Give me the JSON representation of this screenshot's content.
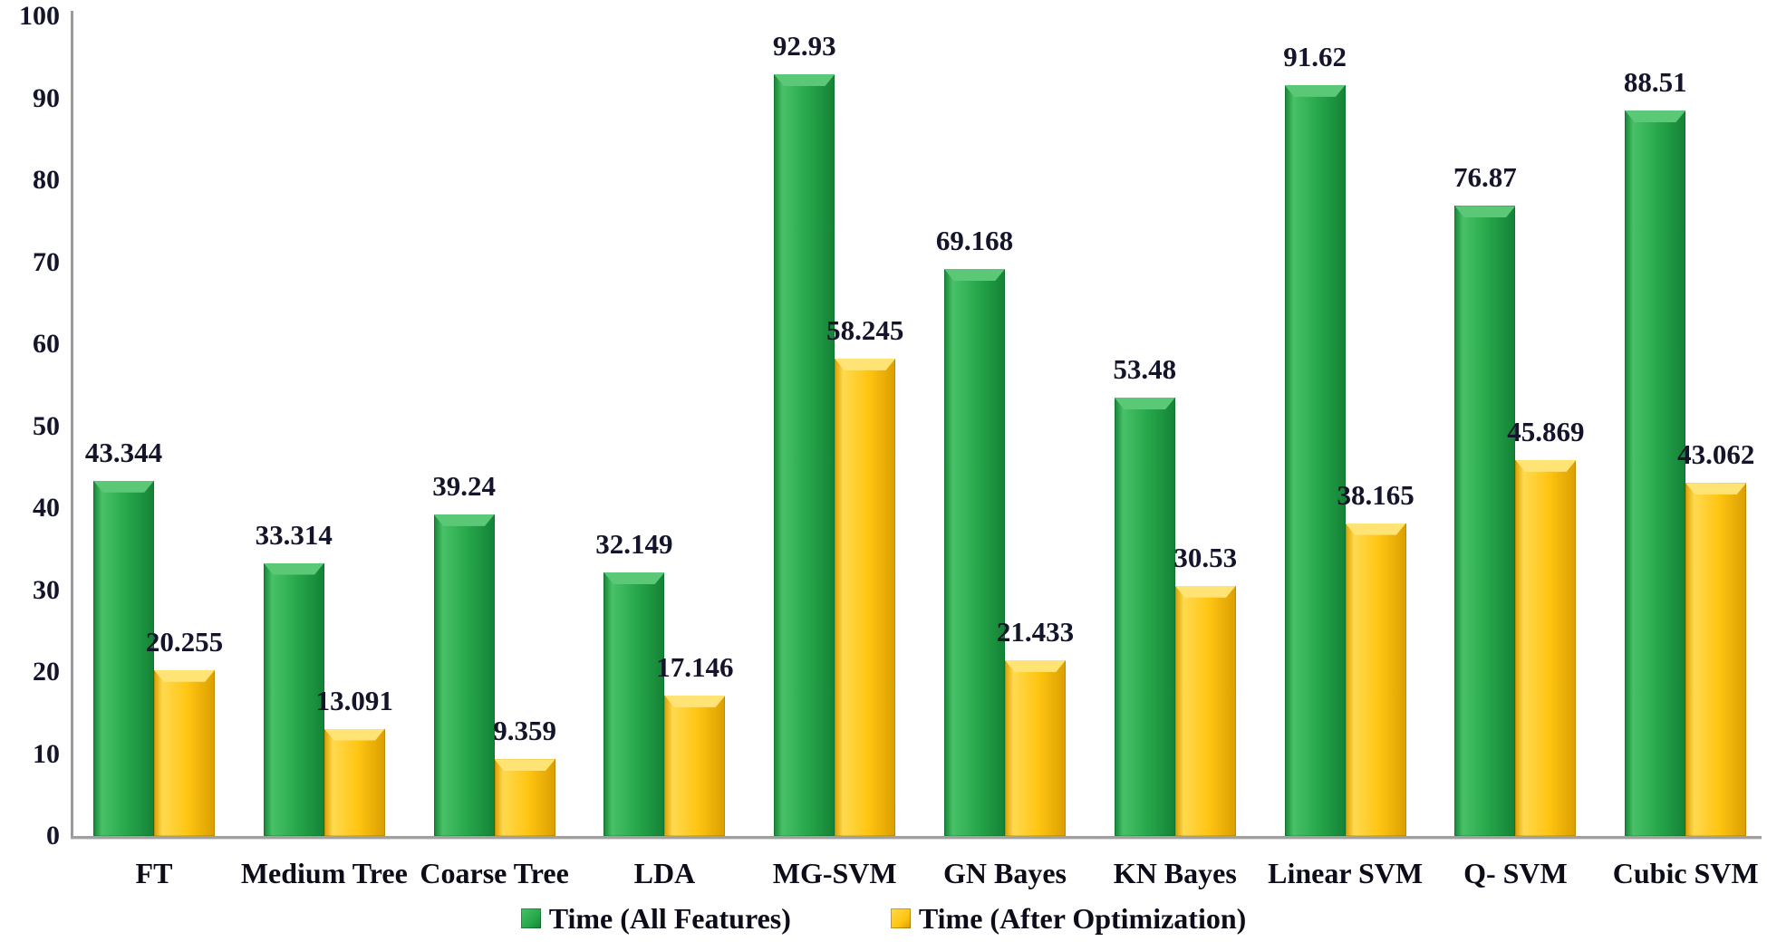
{
  "chart_data": {
    "type": "bar",
    "title": "",
    "xlabel": "",
    "ylabel": "",
    "categories": [
      "FT",
      "Medium Tree",
      "Coarse Tree",
      "LDA",
      "MG-SVM",
      "GN Bayes",
      "KN Bayes",
      "Linear SVM",
      "Q- SVM",
      "Cubic SVM"
    ],
    "series": [
      {
        "name": "Time (All Features)",
        "values": [
          43.344,
          33.314,
          39.24,
          32.149,
          92.93,
          69.168,
          53.48,
          91.62,
          76.87,
          88.51
        ],
        "value_labels": [
          "43.344",
          "33.314",
          "39.24",
          "32.149",
          "92.93",
          "69.168",
          "53.48",
          "91.62",
          "76.87",
          "88.51"
        ],
        "color": "#27A74B",
        "color_light": "#48C167",
        "color_dark": "#148236",
        "color_bevel": "#5BC878"
      },
      {
        "name": "Time (After Optimization)",
        "values": [
          20.255,
          13.091,
          9.359,
          17.146,
          58.245,
          21.433,
          30.53,
          38.165,
          45.869,
          43.062
        ],
        "value_labels": [
          "20.255",
          "13.091",
          "9.359",
          "17.146",
          "58.245",
          "21.433",
          "30.53",
          "38.165",
          "45.869",
          "43.062"
        ],
        "color": "#FFC512",
        "color_light": "#FFD94F",
        "color_dark": "#DB9E00",
        "color_bevel": "#FFE375"
      }
    ],
    "y_axis": {
      "min": 0,
      "max": 100,
      "step": 10,
      "tick_labels": [
        "0",
        "10",
        "20",
        "30",
        "40",
        "50",
        "60",
        "70",
        "80",
        "90",
        "100"
      ]
    },
    "legend_position": "bottom",
    "grid": false,
    "axis_color": "#9b9b9b",
    "text_color": "#14142b"
  }
}
